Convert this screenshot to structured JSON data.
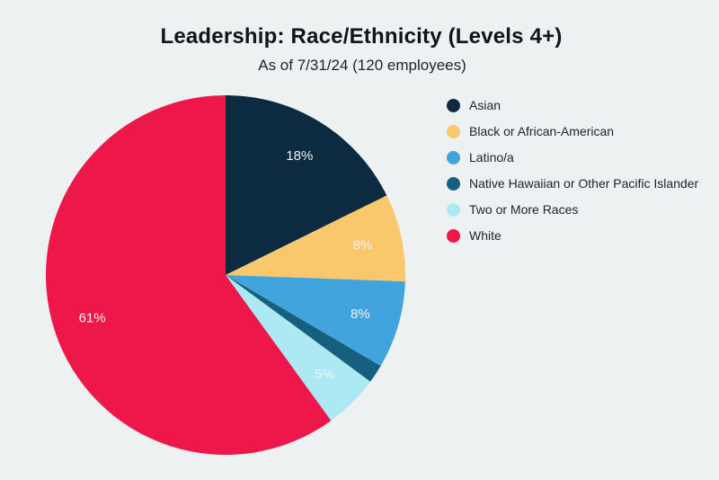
{
  "background_color": "#edf1f2",
  "header": {
    "title": "Leadership: Race/Ethnicity (Levels 4+)",
    "subtitle": "As of 7/31/24 (120 employees)"
  },
  "chart_data": {
    "type": "pie",
    "title": "Leadership: Race/Ethnicity (Levels 4+)",
    "subtitle": "As of 7/31/24 (120 employees)",
    "total_employees": 120,
    "start_angle_deg": 0,
    "direction": "clockwise",
    "legend_position": "right",
    "slice_label_color": "#f2f2f2",
    "slices": [
      {
        "name": "Asian",
        "percent_label": "18%",
        "value": 18,
        "color": "#0c2b40"
      },
      {
        "name": "Black or African-American",
        "percent_label": "8%",
        "value": 8,
        "color": "#f9c86c"
      },
      {
        "name": "Latino/a",
        "percent_label": "8%",
        "value": 8,
        "color": "#42a4dd"
      },
      {
        "name": "Native Hawaiian or Other Pacific Islander",
        "percent_label": "",
        "value": 1.7,
        "color": "#175f7f"
      },
      {
        "name": "Two or More Races",
        "percent_label": "5%",
        "value": 5,
        "color": "#ace9f2"
      },
      {
        "name": "White",
        "percent_label": "61%",
        "value": 61,
        "color": "#ed174a"
      }
    ]
  }
}
